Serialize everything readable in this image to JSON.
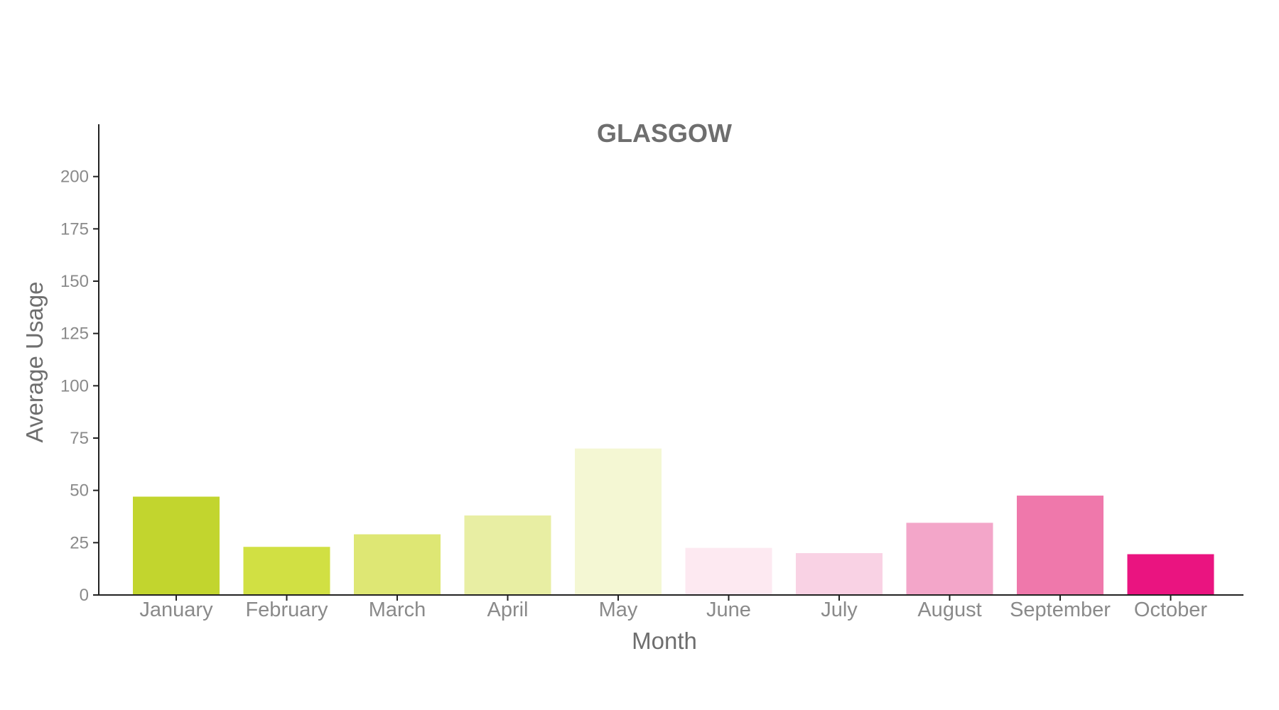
{
  "chart_data": {
    "type": "bar",
    "title": "GLASGOW",
    "xlabel": "Month",
    "ylabel": "Average Usage",
    "ylim": [
      0,
      225
    ],
    "yticks": [
      0,
      25,
      50,
      75,
      100,
      125,
      150,
      175,
      200
    ],
    "grid": false,
    "categories": [
      "January",
      "February",
      "March",
      "April",
      "May",
      "June",
      "July",
      "August",
      "September",
      "October"
    ],
    "values": [
      47,
      23,
      29,
      38,
      70,
      22.5,
      20,
      34.5,
      47.5,
      19.5
    ],
    "colors": [
      "#c2d52e",
      "#d1e043",
      "#dee774",
      "#e8eea3",
      "#f4f7d3",
      "#fde9f1",
      "#f9d2e4",
      "#f3a6c9",
      "#ef78ab",
      "#ea1480"
    ]
  }
}
